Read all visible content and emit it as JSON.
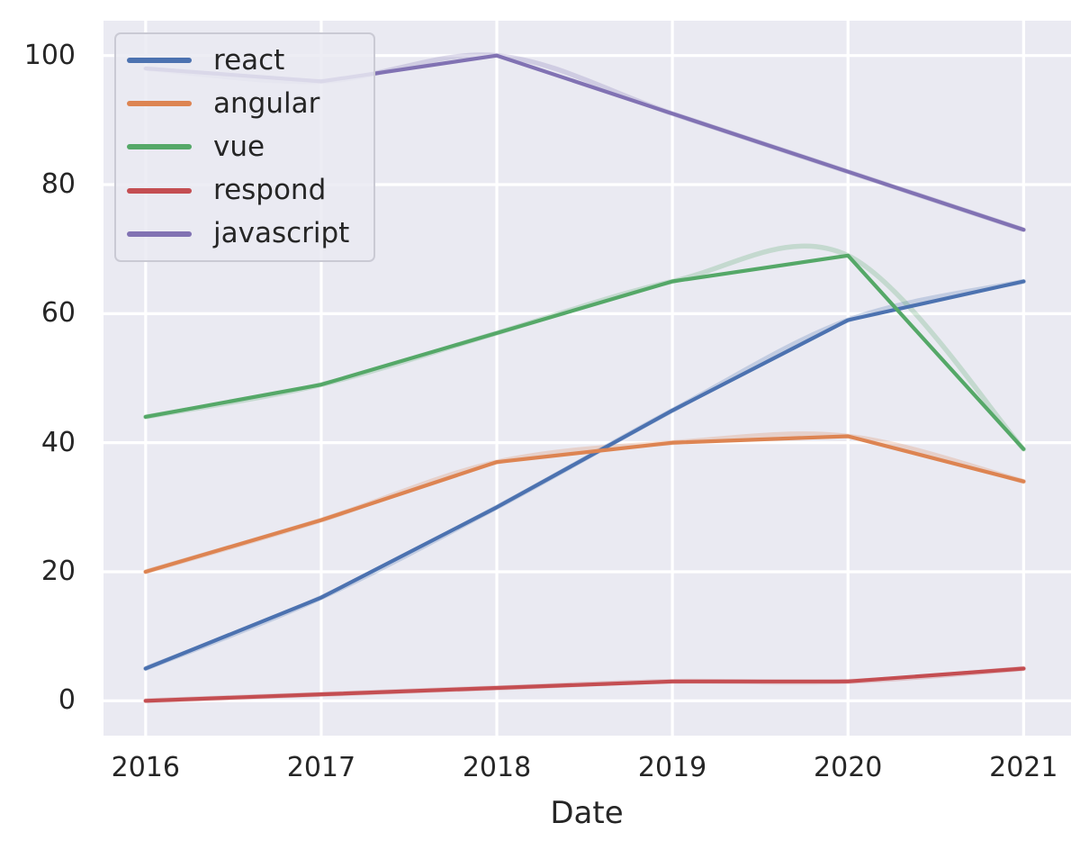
{
  "figure": {
    "background": "#ffffff"
  },
  "chart_data": {
    "type": "line",
    "title": "",
    "xlabel": "Date",
    "ylabel": "",
    "x": [
      2016,
      2017,
      2018,
      2019,
      2020,
      2021
    ],
    "x_tick_labels": [
      "2016",
      "2017",
      "2018",
      "2019",
      "2020",
      "2021"
    ],
    "y_ticks": [
      0,
      20,
      40,
      60,
      80,
      100
    ],
    "xlim": [
      2015.76,
      2021.27
    ],
    "ylim": [
      -5.4,
      105.4
    ],
    "grid": true,
    "legend_position": "upper left",
    "plot_background": "#EAEAF2",
    "grid_color": "#FFFFFF",
    "text_color": "#262626",
    "series": [
      {
        "name": "react",
        "color": "#4C72B0",
        "values": [
          5,
          16,
          30,
          45,
          59,
          65
        ]
      },
      {
        "name": "angular",
        "color": "#DD8452",
        "values": [
          20,
          28,
          37,
          40,
          41,
          34
        ]
      },
      {
        "name": "vue",
        "color": "#55A868",
        "values": [
          44,
          49,
          57,
          65,
          69,
          39
        ]
      },
      {
        "name": "respond",
        "color": "#C44E52",
        "values": [
          0,
          1,
          2,
          3,
          3,
          5
        ]
      },
      {
        "name": "javascript",
        "color": "#8172B3",
        "values": [
          98,
          96,
          100,
          91,
          82,
          73
        ]
      }
    ],
    "style_note": "each series drawn twice: translucent smoothed spline behind a solid polyline"
  }
}
